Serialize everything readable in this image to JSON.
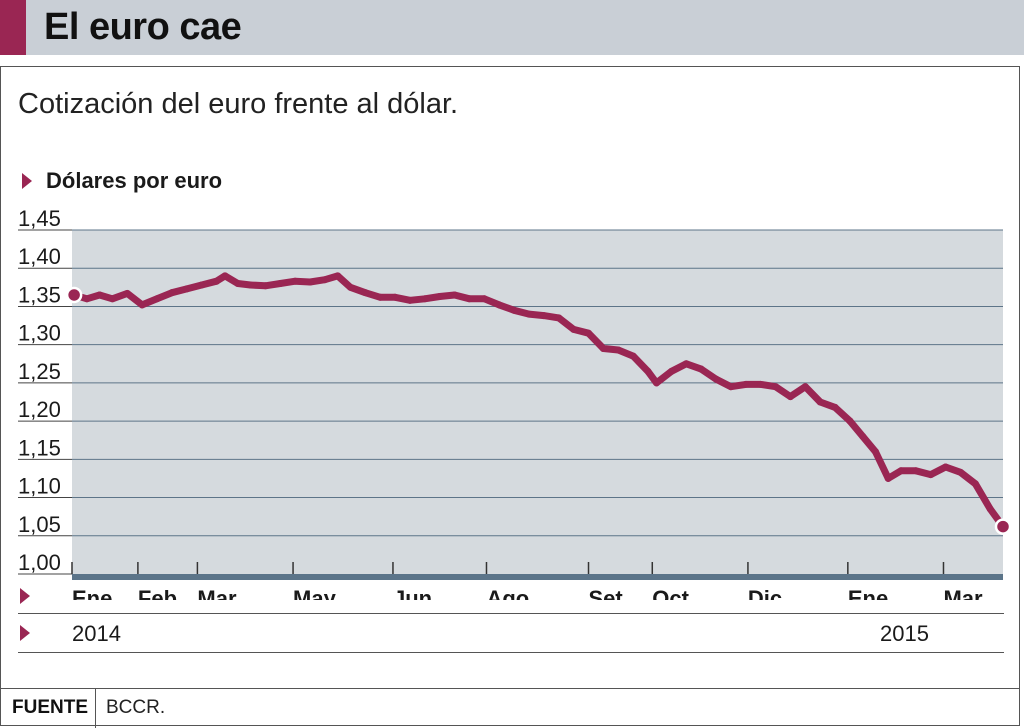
{
  "header": {
    "title": "El euro cae"
  },
  "subtitle": "Cotización del euro frente al dólar.",
  "unit_label": "Dólares por euro",
  "years": {
    "start": "2014",
    "end": "2015"
  },
  "source": {
    "label": "FUENTE",
    "value": "BCCR."
  },
  "colors": {
    "accent": "#9a2653",
    "plot_bg": "#d5dade",
    "axis": "#5b7489",
    "line": "#9a2653",
    "header_bg": "#c9cfd6"
  },
  "chart_data": {
    "type": "line",
    "title": "El euro cae",
    "subtitle": "Cotización del euro frente al dólar.",
    "ylabel": "Dólares por euro",
    "ylim": [
      1.0,
      1.45
    ],
    "yticks": [
      "1,00",
      "1,05",
      "1,10",
      "1,15",
      "1,20",
      "1,25",
      "1,30",
      "1,35",
      "1,40",
      "1,45"
    ],
    "xlim": [
      "2014-01-01",
      "2015-03-15"
    ],
    "xticks": [
      {
        "label": "Ene.",
        "date": "2014-01-01"
      },
      {
        "label": "Feb.",
        "date": "2014-02-01"
      },
      {
        "label": "Mar.",
        "date": "2014-03-01"
      },
      {
        "label": "May.",
        "date": "2014-04-15"
      },
      {
        "label": "Jun.",
        "date": "2014-06-01"
      },
      {
        "label": "Ago.",
        "date": "2014-07-15"
      },
      {
        "label": "Set.",
        "date": "2014-09-01"
      },
      {
        "label": "Oct.",
        "date": "2014-10-01"
      },
      {
        "label": "Dic.",
        "date": "2014-11-15"
      },
      {
        "label": "Ene.",
        "date": "2015-01-01"
      },
      {
        "label": "Mar.",
        "date": "2015-02-15"
      }
    ],
    "grid": true,
    "series": [
      {
        "points": [
          [
            "2014-01-02",
            1.365
          ],
          [
            "2014-01-08",
            1.36
          ],
          [
            "2014-01-14",
            1.365
          ],
          [
            "2014-01-20",
            1.36
          ],
          [
            "2014-01-27",
            1.367
          ],
          [
            "2014-02-03",
            1.352
          ],
          [
            "2014-02-10",
            1.36
          ],
          [
            "2014-02-17",
            1.368
          ],
          [
            "2014-02-24",
            1.373
          ],
          [
            "2014-03-03",
            1.378
          ],
          [
            "2014-03-10",
            1.383
          ],
          [
            "2014-03-14",
            1.39
          ],
          [
            "2014-03-20",
            1.38
          ],
          [
            "2014-03-26",
            1.378
          ],
          [
            "2014-04-02",
            1.377
          ],
          [
            "2014-04-09",
            1.38
          ],
          [
            "2014-04-16",
            1.383
          ],
          [
            "2014-04-23",
            1.382
          ],
          [
            "2014-04-30",
            1.385
          ],
          [
            "2014-05-06",
            1.39
          ],
          [
            "2014-05-12",
            1.375
          ],
          [
            "2014-05-19",
            1.368
          ],
          [
            "2014-05-26",
            1.362
          ],
          [
            "2014-06-02",
            1.362
          ],
          [
            "2014-06-09",
            1.358
          ],
          [
            "2014-06-16",
            1.36
          ],
          [
            "2014-06-23",
            1.363
          ],
          [
            "2014-06-30",
            1.365
          ],
          [
            "2014-07-07",
            1.36
          ],
          [
            "2014-07-14",
            1.36
          ],
          [
            "2014-07-21",
            1.352
          ],
          [
            "2014-07-28",
            1.345
          ],
          [
            "2014-08-04",
            1.34
          ],
          [
            "2014-08-11",
            1.338
          ],
          [
            "2014-08-18",
            1.335
          ],
          [
            "2014-08-25",
            1.32
          ],
          [
            "2014-09-01",
            1.315
          ],
          [
            "2014-09-08",
            1.295
          ],
          [
            "2014-09-15",
            1.293
          ],
          [
            "2014-09-22",
            1.285
          ],
          [
            "2014-09-29",
            1.265
          ],
          [
            "2014-10-03",
            1.25
          ],
          [
            "2014-10-10",
            1.265
          ],
          [
            "2014-10-17",
            1.275
          ],
          [
            "2014-10-24",
            1.268
          ],
          [
            "2014-10-31",
            1.255
          ],
          [
            "2014-11-07",
            1.245
          ],
          [
            "2014-11-14",
            1.248
          ],
          [
            "2014-11-21",
            1.248
          ],
          [
            "2014-11-28",
            1.245
          ],
          [
            "2014-12-05",
            1.232
          ],
          [
            "2014-12-12",
            1.245
          ],
          [
            "2014-12-19",
            1.225
          ],
          [
            "2014-12-26",
            1.218
          ],
          [
            "2015-01-02",
            1.2
          ],
          [
            "2015-01-08",
            1.18
          ],
          [
            "2015-01-14",
            1.16
          ],
          [
            "2015-01-20",
            1.125
          ],
          [
            "2015-01-26",
            1.135
          ],
          [
            "2015-02-02",
            1.135
          ],
          [
            "2015-02-09",
            1.13
          ],
          [
            "2015-02-16",
            1.14
          ],
          [
            "2015-02-23",
            1.133
          ],
          [
            "2015-03-02",
            1.118
          ],
          [
            "2015-03-09",
            1.085
          ],
          [
            "2015-03-15",
            1.062
          ]
        ]
      }
    ],
    "endpoints": [
      [
        "2014-01-02",
        1.365
      ],
      [
        "2015-03-15",
        1.062
      ]
    ]
  }
}
